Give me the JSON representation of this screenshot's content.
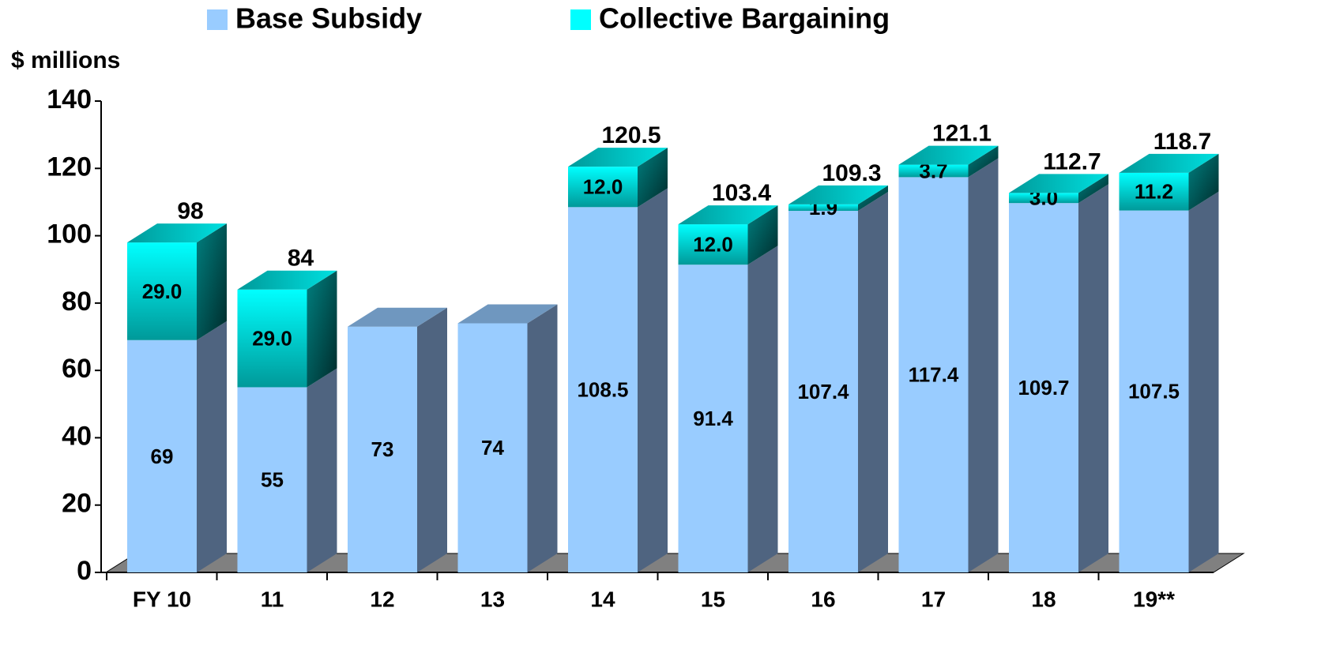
{
  "chart_data": {
    "type": "stacked-bar-3d",
    "y_axis_label": "$ millions",
    "categories": [
      "FY 10",
      "11",
      "12",
      "13",
      "14",
      "15",
      "16",
      "17",
      "18",
      "19**"
    ],
    "series": [
      {
        "name": "Base Subsidy",
        "color": "#99ccff",
        "side_color": "#4f6480",
        "values": [
          69,
          55,
          73,
          74,
          108.5,
          91.4,
          107.4,
          117.4,
          109.7,
          107.5
        ]
      },
      {
        "name": "Collective Bargaining",
        "color": "#00ffff",
        "side_color": "#006666",
        "values": [
          29,
          29,
          null,
          null,
          12,
          12,
          1.9,
          3.7,
          3,
          11.2
        ],
        "value_labels": [
          "29.0",
          "29.0",
          null,
          null,
          "12.0",
          "12.0",
          "1.9",
          "3.7",
          "3.0",
          "11.2"
        ]
      }
    ],
    "totals": [
      98,
      84,
      null,
      null,
      120.5,
      103.4,
      109.3,
      121.1,
      112.7,
      118.7
    ],
    "ylim": [
      0,
      140
    ],
    "yticks": [
      0,
      20,
      40,
      60,
      80,
      100,
      120,
      140
    ],
    "legend": "top"
  }
}
